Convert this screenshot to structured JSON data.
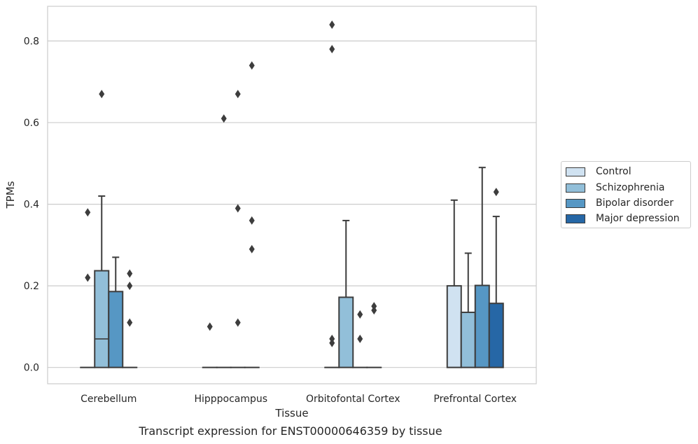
{
  "chart_data": {
    "type": "box",
    "caption": "Transcript expression for ENST00000646359 by tissue",
    "xlabel": "Tissue",
    "ylabel": "TPMs",
    "categories": [
      "Cerebellum",
      "Hipppocampus",
      "Orbitofontal Cortex",
      "Prefrontal Cortex"
    ],
    "ylim": [
      -0.04,
      0.885
    ],
    "yticks": [
      0.0,
      0.2,
      0.4,
      0.6,
      0.8
    ],
    "ytick_labels": [
      "0.0",
      "0.2",
      "0.4",
      "0.6",
      "0.8"
    ],
    "grid": "horizontal",
    "legend_position": "right",
    "series": [
      {
        "name": "Control",
        "color": "#d0e2f1",
        "boxes": [
          {
            "q1": 0,
            "median": 0,
            "q3": 0,
            "whisker_low": 0,
            "whisker_high": 0,
            "outliers": [
              0.22,
              0.38
            ]
          },
          {
            "q1": 0,
            "median": 0,
            "q3": 0,
            "whisker_low": 0,
            "whisker_high": 0,
            "outliers": [
              0.1
            ]
          },
          {
            "q1": 0,
            "median": 0,
            "q3": 0,
            "whisker_low": 0,
            "whisker_high": 0,
            "outliers": [
              0.06,
              0.07,
              0.78,
              0.84
            ]
          },
          {
            "q1": 0,
            "median": 0,
            "q3": 0.2,
            "whisker_low": 0,
            "whisker_high": 0.41,
            "outliers": []
          }
        ]
      },
      {
        "name": "Schizophrenia",
        "color": "#92bfd9",
        "boxes": [
          {
            "q1": 0,
            "median": 0.07,
            "q3": 0.237,
            "whisker_low": 0,
            "whisker_high": 0.42,
            "outliers": [
              0.67
            ]
          },
          {
            "q1": 0,
            "median": 0,
            "q3": 0,
            "whisker_low": 0,
            "whisker_high": 0,
            "outliers": [
              0.61
            ]
          },
          {
            "q1": 0,
            "median": 0,
            "q3": 0.172,
            "whisker_low": 0,
            "whisker_high": 0.36,
            "outliers": []
          },
          {
            "q1": 0,
            "median": 0,
            "q3": 0.135,
            "whisker_low": 0,
            "whisker_high": 0.28,
            "outliers": []
          }
        ]
      },
      {
        "name": "Bipolar disorder",
        "color": "#5697c4",
        "boxes": [
          {
            "q1": 0,
            "median": 0,
            "q3": 0.186,
            "whisker_low": 0,
            "whisker_high": 0.27,
            "outliers": []
          },
          {
            "q1": 0,
            "median": 0,
            "q3": 0,
            "whisker_low": 0,
            "whisker_high": 0,
            "outliers": [
              0.11,
              0.39,
              0.67
            ]
          },
          {
            "q1": 0,
            "median": 0,
            "q3": 0,
            "whisker_low": 0,
            "whisker_high": 0,
            "outliers": [
              0.07,
              0.13
            ]
          },
          {
            "q1": 0,
            "median": 0,
            "q3": 0.201,
            "whisker_low": 0,
            "whisker_high": 0.49,
            "outliers": []
          }
        ]
      },
      {
        "name": "Major depression",
        "color": "#2667a6",
        "boxes": [
          {
            "q1": 0,
            "median": 0,
            "q3": 0,
            "whisker_low": 0,
            "whisker_high": 0,
            "outliers": [
              0.11,
              0.2,
              0.23
            ]
          },
          {
            "q1": 0,
            "median": 0,
            "q3": 0,
            "whisker_low": 0,
            "whisker_high": 0,
            "outliers": [
              0.29,
              0.36,
              0.74
            ]
          },
          {
            "q1": 0,
            "median": 0,
            "q3": 0,
            "whisker_low": 0,
            "whisker_high": 0,
            "outliers": [
              0.14,
              0.15
            ]
          },
          {
            "q1": 0,
            "median": 0,
            "q3": 0.157,
            "whisker_low": 0,
            "whisker_high": 0.37,
            "outliers": [
              0.43
            ]
          }
        ]
      }
    ]
  }
}
